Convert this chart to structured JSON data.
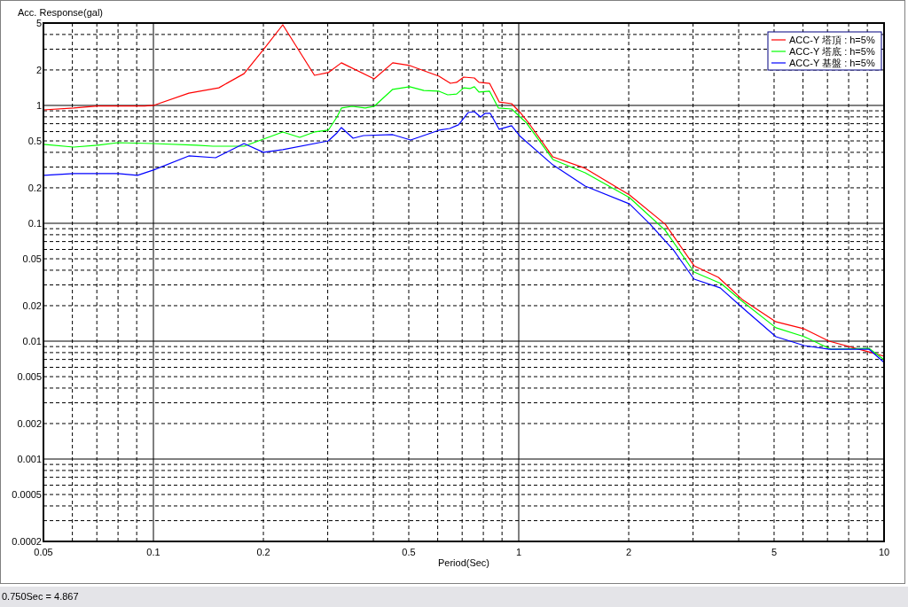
{
  "chart_data": {
    "type": "line",
    "ylabel": "Acc. Response(gal)",
    "xlabel": "Period(Sec)",
    "log": "xy",
    "grid": true,
    "legend": "top right",
    "xlim": [
      0.05,
      10
    ],
    "ylim": [
      0.0002,
      5
    ],
    "xticks": [
      0.05,
      {
        "value": 0.06,
        "label": null
      },
      {
        "value": 0.07,
        "label": null
      },
      {
        "value": 0.08,
        "label": null
      },
      {
        "value": 0.09,
        "label": null
      },
      0.1,
      0.2,
      {
        "value": 0.3,
        "label": null
      },
      {
        "value": 0.4,
        "label": null
      },
      0.5,
      {
        "value": 0.6,
        "label": null
      },
      {
        "value": 0.7,
        "label": null
      },
      {
        "value": 0.8,
        "label": null
      },
      {
        "value": 0.9,
        "label": null
      },
      1,
      2,
      {
        "value": 3,
        "label": null
      },
      {
        "value": 4,
        "label": null
      },
      5,
      {
        "value": 6,
        "label": null
      },
      {
        "value": 7,
        "label": null
      },
      {
        "value": 8,
        "label": null
      },
      {
        "value": 9,
        "label": null
      },
      10
    ],
    "yticks": [
      0.0002,
      {
        "value": 0.0003,
        "label": null
      },
      {
        "value": 0.0004,
        "label": null
      },
      0.0005,
      {
        "value": 0.0006,
        "label": null
      },
      {
        "value": 0.0007,
        "label": null
      },
      {
        "value": 0.0008,
        "label": null
      },
      {
        "value": 0.0009,
        "label": null
      },
      0.001,
      0.002,
      {
        "value": 0.003,
        "label": null
      },
      {
        "value": 0.004,
        "label": null
      },
      0.005,
      {
        "value": 0.006,
        "label": null
      },
      {
        "value": 0.007,
        "label": null
      },
      {
        "value": 0.008,
        "label": null
      },
      {
        "value": 0.009,
        "label": null
      },
      0.01,
      0.02,
      {
        "value": 0.03,
        "label": null
      },
      {
        "value": 0.04,
        "label": null
      },
      0.05,
      {
        "value": 0.06,
        "label": null
      },
      {
        "value": 0.07,
        "label": null
      },
      {
        "value": 0.08,
        "label": null
      },
      {
        "value": 0.09,
        "label": null
      },
      0.1,
      0.2,
      {
        "value": 0.3,
        "label": null
      },
      {
        "value": 0.4,
        "label": null
      },
      0.5,
      {
        "value": 0.6,
        "label": null
      },
      {
        "value": 0.7,
        "label": null
      },
      {
        "value": 0.8,
        "label": null
      },
      {
        "value": 0.9,
        "label": null
      },
      1,
      2,
      {
        "value": 3,
        "label": null
      },
      {
        "value": 4,
        "label": null
      },
      5
    ],
    "series": [
      {
        "name": "ACC-Y 塔頂 : h=5%",
        "color": "#ff0000",
        "x": [
          0.05,
          0.0605,
          0.0703,
          0.0946,
          0.1,
          0.125,
          0.151,
          0.177,
          0.201,
          0.226,
          0.276,
          0.301,
          0.327,
          0.402,
          0.452,
          0.503,
          0.605,
          0.65,
          0.676,
          0.707,
          0.756,
          0.778,
          0.832,
          0.884,
          0.956,
          1.01,
          1.07,
          1.24,
          1.52,
          2.01,
          2.52,
          3.02,
          3.52,
          4.09,
          5.06,
          6.05,
          7.07,
          9.09,
          10
        ],
        "values": [
          0.917,
          0.95,
          0.99,
          0.99,
          1.0,
          1.27,
          1.41,
          1.86,
          3.03,
          4.83,
          1.8,
          1.9,
          2.3,
          1.68,
          2.3,
          2.18,
          1.77,
          1.54,
          1.57,
          1.74,
          1.71,
          1.57,
          1.54,
          1.07,
          1.035,
          0.87,
          0.695,
          0.366,
          0.293,
          0.174,
          0.098,
          0.0436,
          0.0348,
          0.0226,
          0.0146,
          0.0127,
          0.01,
          0.0081,
          0.00745
        ]
      },
      {
        "name": "ACC-Y 塔底 : h=5%",
        "color": "#00ff00",
        "x": [
          0.05,
          0.0605,
          0.0703,
          0.08,
          0.1,
          0.1315,
          0.1455,
          0.177,
          0.226,
          0.2515,
          0.276,
          0.301,
          0.318,
          0.327,
          0.35,
          0.38,
          0.402,
          0.452,
          0.503,
          0.55,
          0.605,
          0.639,
          0.676,
          0.707,
          0.735,
          0.756,
          0.778,
          0.832,
          0.88,
          0.956,
          1.046,
          1.24,
          1.52,
          2.01,
          2.52,
          3.02,
          3.58,
          4.09,
          5.06,
          6.05,
          7.15,
          9.09,
          10
        ],
        "values": [
          0.467,
          0.443,
          0.459,
          0.483,
          0.475,
          0.459,
          0.451,
          0.451,
          0.595,
          0.536,
          0.595,
          0.616,
          0.798,
          0.95,
          0.983,
          0.95,
          0.983,
          1.37,
          1.44,
          1.34,
          1.32,
          1.23,
          1.25,
          1.41,
          1.39,
          1.44,
          1.3,
          1.32,
          0.95,
          0.933,
          0.72,
          0.348,
          0.268,
          0.165,
          0.087,
          0.0386,
          0.0308,
          0.0218,
          0.013,
          0.0109,
          0.00855,
          0.0087,
          0.00695
        ]
      },
      {
        "name": "ACC-Y 基盤 : h=5%",
        "color": "#0000ff",
        "x": [
          0.05,
          0.0605,
          0.08,
          0.0904,
          0.1,
          0.125,
          0.148,
          0.177,
          0.2,
          0.226,
          0.301,
          0.318,
          0.327,
          0.352,
          0.376,
          0.452,
          0.506,
          0.605,
          0.647,
          0.684,
          0.727,
          0.756,
          0.786,
          0.809,
          0.836,
          0.884,
          0.956,
          1.01,
          1.24,
          1.52,
          2.01,
          2.29,
          2.66,
          3.02,
          3.56,
          4.09,
          5.06,
          6.05,
          7.07,
          9.09,
          10
        ],
        "values": [
          0.255,
          0.264,
          0.264,
          0.255,
          0.283,
          0.373,
          0.36,
          0.475,
          0.4,
          0.421,
          0.5,
          0.585,
          0.649,
          0.527,
          0.555,
          0.565,
          0.509,
          0.616,
          0.637,
          0.684,
          0.87,
          0.886,
          0.798,
          0.856,
          0.856,
          0.627,
          0.672,
          0.545,
          0.313,
          0.207,
          0.146,
          0.098,
          0.0585,
          0.0336,
          0.0283,
          0.0193,
          0.0109,
          0.00917,
          0.00855,
          0.00855,
          0.0066
        ]
      }
    ],
    "annotations": [
      "0.750Sec = 4.867"
    ]
  }
}
